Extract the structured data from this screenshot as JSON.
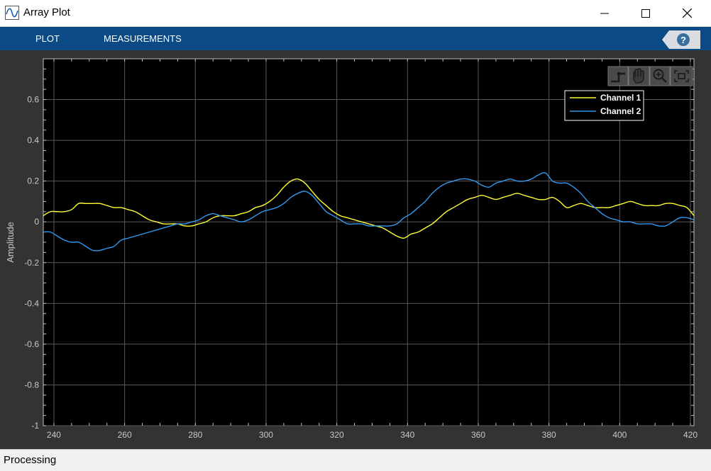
{
  "window": {
    "title": "Array Plot"
  },
  "toolstrip": {
    "tabs": [
      "PLOT",
      "MEASUREMENTS"
    ],
    "help_label": "?"
  },
  "axes_toolbar": {
    "icons": [
      "data-cursor-icon",
      "pan-icon",
      "zoom-in-icon",
      "autoscale-icon"
    ]
  },
  "status": {
    "text": "Processing"
  },
  "colors": {
    "toolstrip": "#0b4a84",
    "axes_background": "#000000",
    "figure_background": "#333333",
    "channel_1": "#ffff33",
    "channel_2": "#3399ee"
  },
  "chart_data": {
    "type": "line",
    "title": "",
    "xlabel": "",
    "ylabel": "Amplitude",
    "xlim": [
      237,
      421
    ],
    "ylim": [
      -1,
      0.8
    ],
    "xticks": [
      240,
      260,
      280,
      300,
      320,
      340,
      360,
      380,
      400,
      420
    ],
    "yticks": [
      -1,
      -0.8,
      -0.6,
      -0.4,
      -0.2,
      0,
      0.2,
      0.4,
      0.6
    ],
    "ytick_labels": [
      "-1",
      "-0.8",
      "-0.6",
      "-0.4",
      "-0.2",
      "0",
      "0.2",
      "0.4",
      "0.6"
    ],
    "grid": true,
    "legend_position": "top-right",
    "series": [
      {
        "name": "Channel 1",
        "color": "#ffff33",
        "x": [
          237,
          239,
          241,
          243,
          245,
          247,
          249,
          251,
          253,
          255,
          257,
          259,
          261,
          263,
          265,
          267,
          269,
          271,
          273,
          275,
          277,
          279,
          281,
          283,
          285,
          287,
          289,
          291,
          293,
          295,
          297,
          299,
          301,
          303,
          305,
          307,
          309,
          311,
          313,
          315,
          317,
          319,
          321,
          323,
          325,
          327,
          329,
          331,
          333,
          335,
          337,
          339,
          341,
          343,
          345,
          347,
          349,
          351,
          353,
          355,
          357,
          359,
          361,
          363,
          365,
          367,
          369,
          371,
          373,
          375,
          377,
          379,
          381,
          383,
          385,
          387,
          389,
          391,
          393,
          395,
          397,
          399,
          401,
          403,
          405,
          407,
          409,
          411,
          413,
          415,
          417,
          419,
          421
        ],
        "y": [
          0.03,
          0.05,
          0.05,
          0.05,
          0.06,
          0.09,
          0.09,
          0.09,
          0.09,
          0.08,
          0.07,
          0.07,
          0.06,
          0.05,
          0.03,
          0.01,
          0.0,
          -0.01,
          -0.01,
          -0.01,
          -0.02,
          -0.02,
          -0.01,
          0.0,
          0.02,
          0.03,
          0.03,
          0.03,
          0.04,
          0.05,
          0.07,
          0.08,
          0.1,
          0.13,
          0.17,
          0.2,
          0.21,
          0.19,
          0.15,
          0.11,
          0.08,
          0.05,
          0.03,
          0.02,
          0.01,
          0.0,
          -0.01,
          -0.02,
          -0.03,
          -0.05,
          -0.07,
          -0.08,
          -0.06,
          -0.05,
          -0.03,
          -0.01,
          0.02,
          0.05,
          0.07,
          0.09,
          0.11,
          0.12,
          0.13,
          0.12,
          0.11,
          0.12,
          0.13,
          0.14,
          0.13,
          0.12,
          0.11,
          0.11,
          0.12,
          0.1,
          0.07,
          0.08,
          0.09,
          0.08,
          0.07,
          0.07,
          0.07,
          0.08,
          0.09,
          0.1,
          0.09,
          0.08,
          0.08,
          0.08,
          0.09,
          0.09,
          0.08,
          0.07,
          0.03
        ]
      },
      {
        "name": "Channel 2",
        "color": "#3399ee",
        "x": [
          237,
          239,
          241,
          243,
          245,
          247,
          249,
          251,
          253,
          255,
          257,
          259,
          261,
          263,
          265,
          267,
          269,
          271,
          273,
          275,
          277,
          279,
          281,
          283,
          285,
          287,
          289,
          291,
          293,
          295,
          297,
          299,
          301,
          303,
          305,
          307,
          309,
          311,
          313,
          315,
          317,
          319,
          321,
          323,
          325,
          327,
          329,
          331,
          333,
          335,
          337,
          339,
          341,
          343,
          345,
          347,
          349,
          351,
          353,
          355,
          357,
          359,
          361,
          363,
          365,
          367,
          369,
          371,
          373,
          375,
          377,
          379,
          381,
          383,
          385,
          387,
          389,
          391,
          393,
          395,
          397,
          399,
          401,
          403,
          405,
          407,
          409,
          411,
          413,
          415,
          417,
          419,
          421
        ],
        "y": [
          -0.05,
          -0.05,
          -0.07,
          -0.09,
          -0.1,
          -0.1,
          -0.12,
          -0.14,
          -0.14,
          -0.13,
          -0.12,
          -0.09,
          -0.08,
          -0.07,
          -0.06,
          -0.05,
          -0.04,
          -0.03,
          -0.02,
          -0.01,
          -0.01,
          -0.0,
          0.01,
          0.03,
          0.04,
          0.03,
          0.02,
          0.01,
          0.0,
          0.01,
          0.03,
          0.05,
          0.06,
          0.07,
          0.09,
          0.12,
          0.14,
          0.15,
          0.13,
          0.09,
          0.05,
          0.03,
          0.01,
          -0.01,
          -0.01,
          -0.01,
          -0.02,
          -0.02,
          -0.02,
          -0.02,
          -0.01,
          0.02,
          0.04,
          0.07,
          0.1,
          0.14,
          0.17,
          0.19,
          0.2,
          0.21,
          0.21,
          0.2,
          0.18,
          0.17,
          0.19,
          0.2,
          0.21,
          0.2,
          0.2,
          0.21,
          0.23,
          0.24,
          0.2,
          0.19,
          0.19,
          0.17,
          0.14,
          0.1,
          0.07,
          0.04,
          0.02,
          0.01,
          0.0,
          0.0,
          -0.01,
          -0.01,
          -0.01,
          -0.02,
          -0.02,
          0.0,
          0.02,
          0.02,
          0.01
        ]
      }
    ]
  }
}
